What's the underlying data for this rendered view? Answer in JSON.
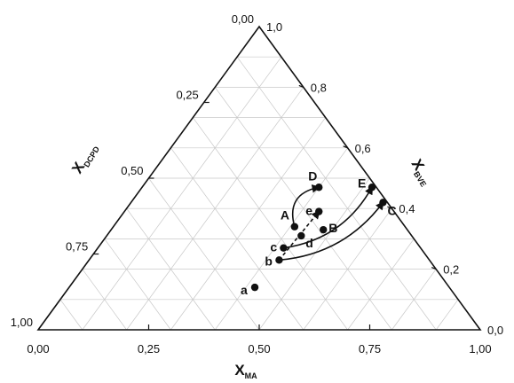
{
  "chart_data": {
    "type": "ternary",
    "axes": {
      "bottom": {
        "label": "X",
        "subscript": "MA",
        "ticks": [
          "0,00",
          "0,25",
          "0,50",
          "0,75",
          "1,00"
        ]
      },
      "right": {
        "label": "X",
        "subscript": "BVE",
        "ticks": [
          "0,0",
          "0,2",
          "0,4",
          "0,6",
          "0,8",
          "1,0"
        ]
      },
      "left": {
        "label": "X",
        "subscript": "DCPD",
        "ticks": [
          "0,00",
          "0,25",
          "0,50",
          "0,75",
          "1,00"
        ]
      }
    },
    "grid": true,
    "points": [
      {
        "label": "a",
        "MA": 0.42,
        "BVE": 0.14,
        "DCPD": 0.44
      },
      {
        "label": "b",
        "MA": 0.43,
        "BVE": 0.23,
        "DCPD": 0.34
      },
      {
        "label": "c",
        "MA": 0.42,
        "BVE": 0.27,
        "DCPD": 0.31
      },
      {
        "label": "d",
        "MA": 0.44,
        "BVE": 0.31,
        "DCPD": 0.25
      },
      {
        "label": "e",
        "MA": 0.44,
        "BVE": 0.39,
        "DCPD": 0.17
      },
      {
        "label": "A",
        "MA": 0.41,
        "BVE": 0.34,
        "DCPD": 0.25
      },
      {
        "label": "B",
        "MA": 0.48,
        "BVE": 0.33,
        "DCPD": 0.19
      },
      {
        "label": "C",
        "MA": 0.57,
        "BVE": 0.42,
        "DCPD": 0.01
      },
      {
        "label": "D",
        "MA": 0.4,
        "BVE": 0.47,
        "DCPD": 0.13
      },
      {
        "label": "E",
        "MA": 0.52,
        "BVE": 0.47,
        "DCPD": 0.01
      }
    ],
    "arrows": [
      {
        "from": "b",
        "to": "e",
        "style": "dashed"
      },
      {
        "from": "A",
        "to": "D",
        "style": "curved"
      },
      {
        "from": "b",
        "to": "C",
        "style": "curved"
      },
      {
        "from": "c",
        "to": "E",
        "style": "curved"
      }
    ]
  }
}
